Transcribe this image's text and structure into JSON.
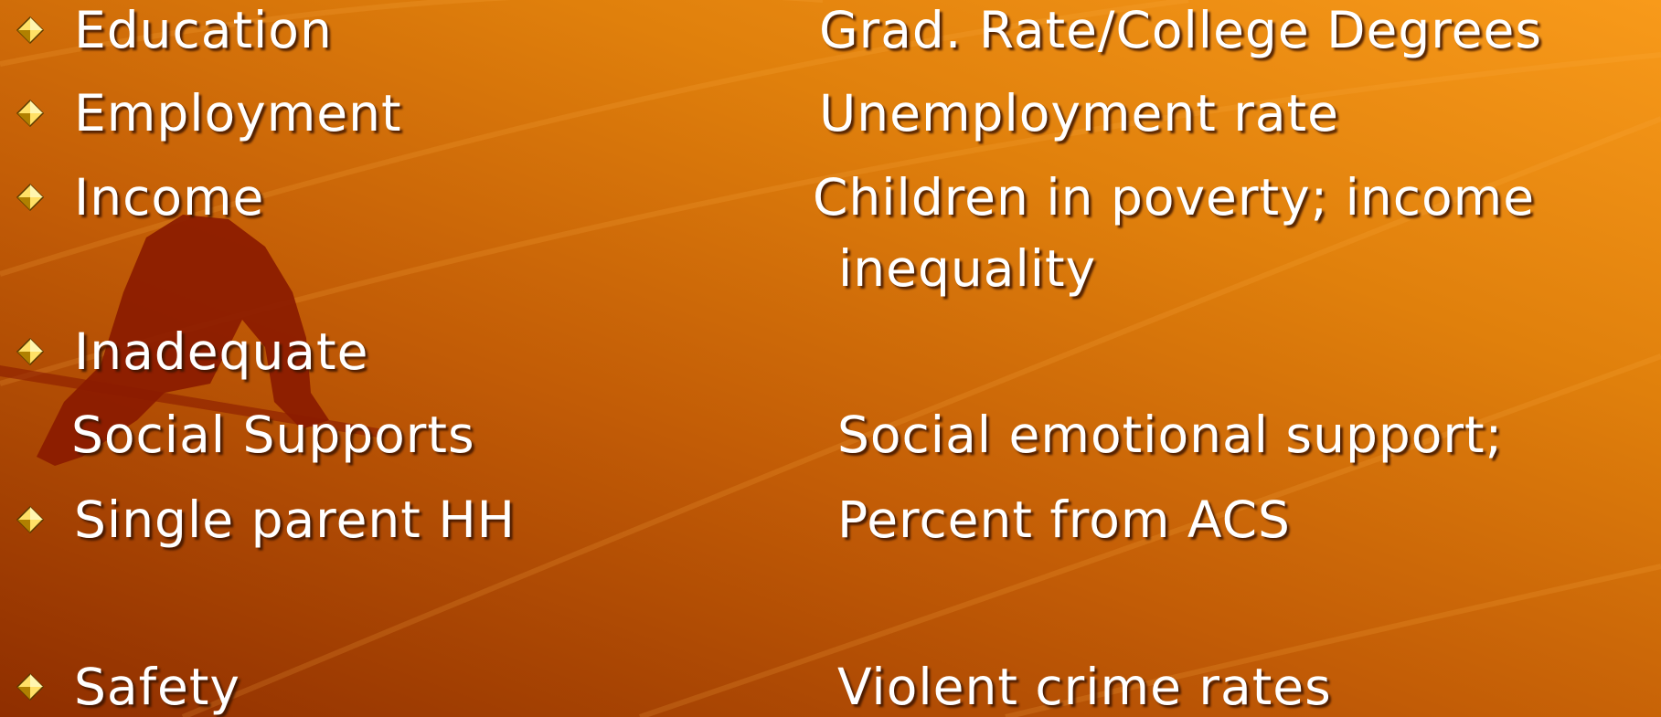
{
  "rows": [
    {
      "left": "Education",
      "right": [
        "Grad. Rate/College Degrees"
      ]
    },
    {
      "left": "Employment",
      "right": [
        "Unemployment rate"
      ]
    },
    {
      "left": "Income",
      "right": [
        "Children in poverty; income",
        "inequality"
      ]
    },
    {
      "left": "Inadequate"
    },
    {
      "left": "Social Supports",
      "right": [
        "Social emotional support;"
      ]
    },
    {
      "left": "Single parent HH",
      "right": [
        "Percent from ACS"
      ]
    },
    {
      "left": "Safety",
      "right": [
        "Violent crime rates"
      ]
    }
  ]
}
